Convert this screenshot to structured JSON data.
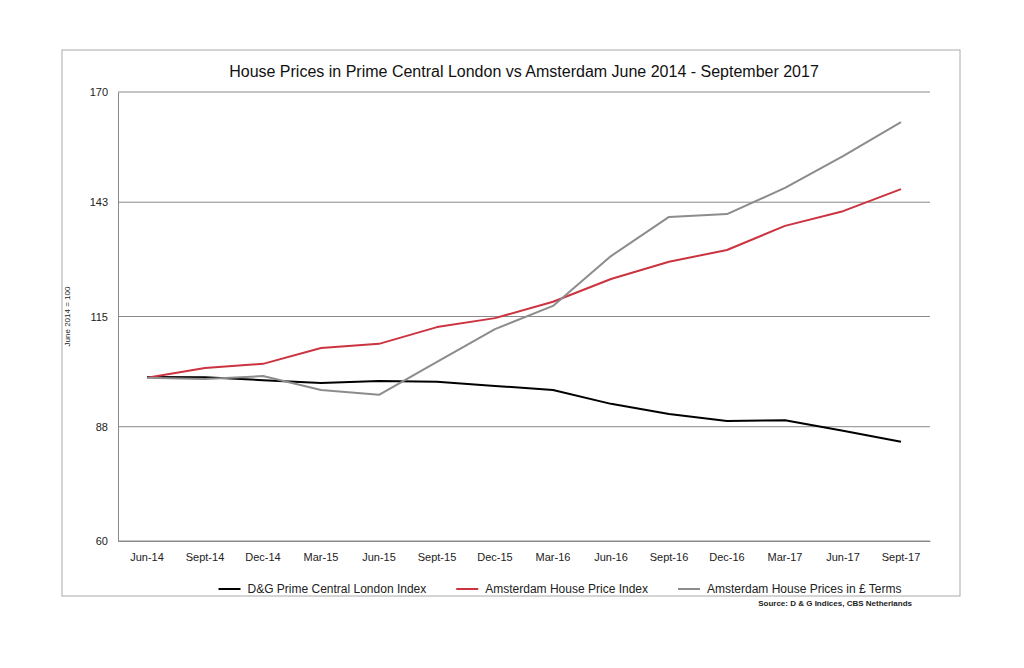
{
  "chart_data": {
    "type": "line",
    "title": "House Prices in Prime Central London vs Amsterdam June 2014 - September 2017",
    "y_label": "June 2014 = 100",
    "source": "Source: D & G Indices, CBS Netherlands",
    "categories": [
      "Jun-14",
      "Sept-14",
      "Dec-14",
      "Mar-15",
      "Jun-15",
      "Sept-15",
      "Dec-15",
      "Mar-16",
      "Jun-16",
      "Sept-16",
      "Dec-16",
      "Mar-17",
      "Jun-17",
      "Sept-17"
    ],
    "series": [
      {
        "name": "D&G Prime Central London Index",
        "color": "#000000",
        "values": [
          100.2,
          100.1,
          99.4,
          98.7,
          99.2,
          99.0,
          98.0,
          97.0,
          93.6,
          91.1,
          89.4,
          89.6,
          87.0,
          84.3
        ]
      },
      {
        "name": "Amsterdam House Price Index",
        "color": "#cc3340",
        "values": [
          100.0,
          102.4,
          103.4,
          107.3,
          108.3,
          112.4,
          114.6,
          118.6,
          124.2,
          128.4,
          131.3,
          137.2,
          140.8,
          146.2
        ]
      },
      {
        "name": "Amsterdam House Prices in £ Terms",
        "color": "#8c8c8c",
        "values": [
          100.0,
          99.7,
          100.4,
          97.0,
          95.8,
          103.9,
          111.9,
          117.6,
          129.8,
          139.4,
          140.1,
          146.5,
          154.3,
          162.6
        ]
      }
    ],
    "ylim": [
      60,
      170
    ],
    "yticks": [
      60,
      88,
      115,
      143,
      170
    ],
    "grid": true,
    "legend": "bottom"
  }
}
